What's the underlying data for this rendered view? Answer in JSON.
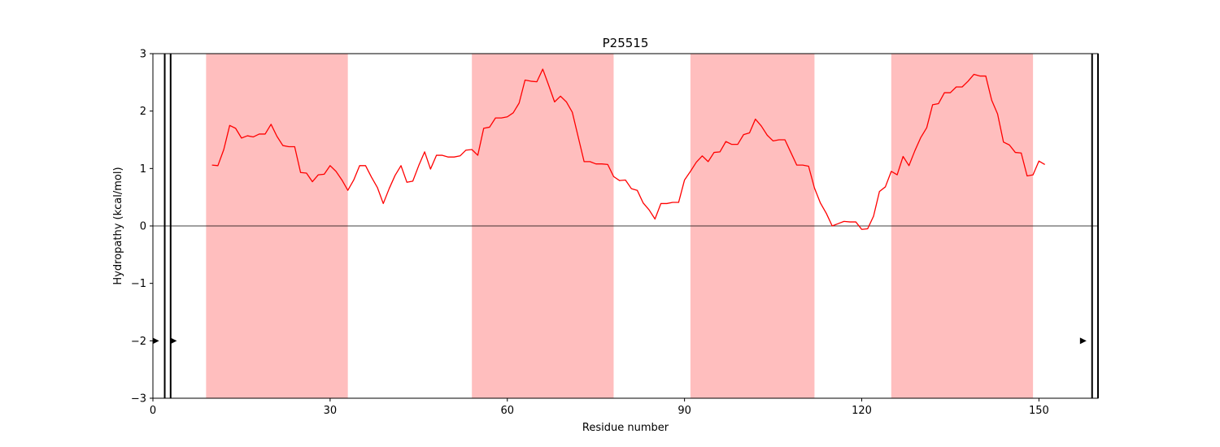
{
  "chart_data": {
    "type": "line",
    "title": "P25515",
    "xlabel": "Residue number",
    "ylabel": "Hydropathy (kcal/mol)",
    "xlim": [
      0,
      160
    ],
    "ylim": [
      -3,
      3
    ],
    "xticks": [
      0,
      30,
      60,
      90,
      120,
      150
    ],
    "yticks": [
      -3,
      -2,
      -1,
      0,
      1,
      2,
      3
    ],
    "xtick_labels": [
      "0",
      "30",
      "60",
      "90",
      "120",
      "150"
    ],
    "ytick_labels": [
      "−3",
      "−2",
      "−1",
      "0",
      "1",
      "2",
      "3"
    ],
    "grid": false,
    "zero_line": 0,
    "series_color": "#ff0000",
    "region_color": "#ffbebe",
    "highlighted_regions": [
      [
        9,
        33
      ],
      [
        54,
        78
      ],
      [
        91,
        112
      ],
      [
        125,
        149
      ]
    ],
    "vertical_lines": [
      2,
      3,
      159,
      160
    ],
    "markers": [
      {
        "x": 0.5,
        "y": -2,
        "shape": "triangle-right"
      },
      {
        "x": 3.5,
        "y": -2,
        "shape": "triangle-right"
      },
      {
        "x": 157.5,
        "y": -2,
        "shape": "triangle-right"
      }
    ],
    "series": [
      {
        "x": [
          10,
          11,
          12,
          13,
          14,
          15,
          16,
          17,
          18,
          19,
          20,
          21,
          22,
          23,
          24,
          25,
          26,
          27,
          28,
          29,
          30,
          31,
          32,
          33,
          34,
          35,
          36,
          37,
          38,
          39,
          40,
          41,
          42,
          43,
          44,
          45,
          46,
          47,
          48,
          49,
          50,
          51,
          52,
          53,
          54,
          55,
          56,
          57,
          58,
          59,
          60,
          61,
          62,
          63,
          64,
          65,
          66,
          67,
          68,
          69,
          70,
          71,
          72,
          73,
          74,
          75,
          76,
          77,
          78,
          79,
          80,
          81,
          82,
          83,
          84,
          85,
          86,
          87,
          88,
          89,
          90,
          91,
          92,
          93,
          94,
          95,
          96,
          97,
          98,
          99,
          100,
          101,
          102,
          103,
          104,
          105,
          106,
          107,
          108,
          109,
          110,
          111,
          112,
          113,
          114,
          115,
          116,
          117,
          118,
          119,
          120,
          121,
          122,
          123,
          124,
          125,
          126,
          127,
          128,
          129,
          130,
          131,
          132,
          133,
          134,
          135,
          136,
          137,
          138,
          139,
          140,
          141,
          142,
          143,
          144,
          145,
          146,
          147,
          148,
          149,
          150,
          151
        ],
        "y": [
          1.06,
          1.05,
          1.33,
          1.75,
          1.7,
          1.53,
          1.57,
          1.55,
          1.6,
          1.6,
          1.77,
          1.56,
          1.4,
          1.38,
          1.38,
          0.93,
          0.92,
          0.77,
          0.89,
          0.9,
          1.05,
          0.95,
          0.8,
          0.62,
          0.8,
          1.05,
          1.05,
          0.85,
          0.67,
          0.39,
          0.65,
          0.88,
          1.05,
          0.76,
          0.78,
          1.05,
          1.29,
          0.99,
          1.23,
          1.23,
          1.2,
          1.2,
          1.22,
          1.32,
          1.33,
          1.23,
          1.7,
          1.72,
          1.88,
          1.88,
          1.9,
          1.97,
          2.14,
          2.54,
          2.52,
          2.51,
          2.73,
          2.45,
          2.16,
          2.26,
          2.16,
          1.98,
          1.55,
          1.12,
          1.12,
          1.08,
          1.08,
          1.07,
          0.86,
          0.79,
          0.8,
          0.65,
          0.62,
          0.4,
          0.28,
          0.12,
          0.39,
          0.39,
          0.41,
          0.41,
          0.8,
          0.95,
          1.11,
          1.22,
          1.12,
          1.28,
          1.29,
          1.47,
          1.42,
          1.42,
          1.59,
          1.62,
          1.86,
          1.74,
          1.58,
          1.48,
          1.5,
          1.5,
          1.28,
          1.06,
          1.06,
          1.04,
          0.66,
          0.4,
          0.22,
          0.0,
          0.04,
          0.08,
          0.07,
          0.07,
          -0.06,
          -0.05,
          0.17,
          0.6,
          0.68,
          0.95,
          0.89,
          1.21,
          1.05,
          1.31,
          1.54,
          1.71,
          2.11,
          2.13,
          2.32,
          2.32,
          2.42,
          2.42,
          2.52,
          2.64,
          2.61,
          2.61,
          2.19,
          1.95,
          1.46,
          1.41,
          1.28,
          1.27,
          0.87,
          0.89,
          1.13,
          1.07
        ]
      }
    ]
  }
}
